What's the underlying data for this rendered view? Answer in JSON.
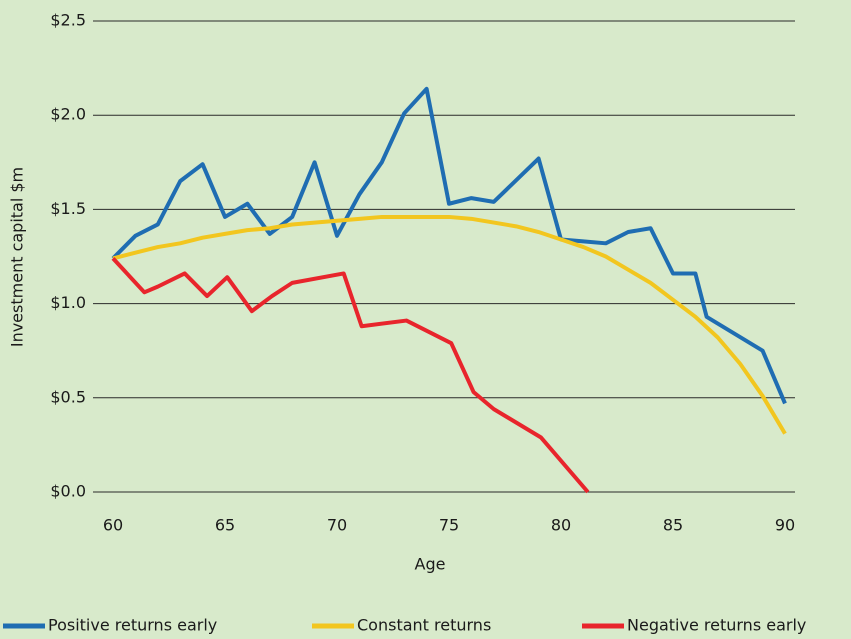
{
  "chart_data": {
    "type": "line",
    "x_label": "Age",
    "y_label": "Investment capital $m",
    "xlim": [
      60,
      90
    ],
    "xticks": [
      60,
      65,
      70,
      75,
      80,
      85,
      90
    ],
    "ylim": [
      0,
      2.5
    ],
    "yticks": [
      {
        "value": 0,
        "label": "$0.0"
      },
      {
        "value": 0.5,
        "label": "$0.5"
      },
      {
        "value": 1,
        "label": "$1.0"
      },
      {
        "value": 1.5,
        "label": "$1.5"
      },
      {
        "value": 2,
        "label": "$2.0"
      },
      {
        "value": 2.5,
        "label": "$2.5"
      }
    ],
    "grid": true,
    "legend": "bottom",
    "series": [
      {
        "name": "Positive returns early",
        "color": "#1f6db2",
        "x": [
          60,
          61,
          62,
          63,
          64,
          65,
          66,
          67,
          68,
          69,
          70,
          71,
          72,
          73,
          74,
          75,
          76,
          77,
          79,
          80,
          81,
          82,
          83,
          84,
          85,
          86,
          86.5,
          89,
          90
        ],
        "values": [
          1.24,
          1.36,
          1.42,
          1.65,
          1.74,
          1.46,
          1.53,
          1.37,
          1.46,
          1.75,
          1.36,
          1.58,
          1.75,
          2.01,
          2.14,
          1.53,
          1.56,
          1.54,
          1.77,
          1.34,
          1.33,
          1.32,
          1.38,
          1.4,
          1.16,
          1.16,
          0.93,
          0.75,
          0.47
        ]
      },
      {
        "name": "Constant returns",
        "color": "#f2c61f",
        "x": [
          60,
          61,
          62,
          63,
          64,
          65,
          66,
          67,
          68,
          69,
          70,
          71,
          72,
          73,
          74,
          75,
          76,
          77,
          78,
          79,
          80,
          81,
          82,
          83,
          84,
          85,
          86,
          87,
          88,
          89,
          90
        ],
        "values": [
          1.24,
          1.27,
          1.3,
          1.32,
          1.35,
          1.37,
          1.39,
          1.4,
          1.42,
          1.43,
          1.44,
          1.45,
          1.46,
          1.46,
          1.46,
          1.46,
          1.45,
          1.43,
          1.41,
          1.38,
          1.34,
          1.3,
          1.25,
          1.18,
          1.11,
          1.02,
          0.93,
          0.82,
          0.68,
          0.51,
          0.31
        ]
      },
      {
        "name": "Negative returns early",
        "color": "#e8252c",
        "x": [
          60,
          61.4,
          62,
          63.2,
          64.2,
          65.1,
          66.2,
          67.1,
          68,
          70.3,
          71.1,
          73.1,
          75.1,
          76.1,
          77,
          79.1,
          81.2
        ],
        "values": [
          1.24,
          1.06,
          1.09,
          1.16,
          1.04,
          1.14,
          0.96,
          1.04,
          1.11,
          1.16,
          0.88,
          0.91,
          0.79,
          0.53,
          0.44,
          0.29,
          0
        ]
      }
    ]
  }
}
